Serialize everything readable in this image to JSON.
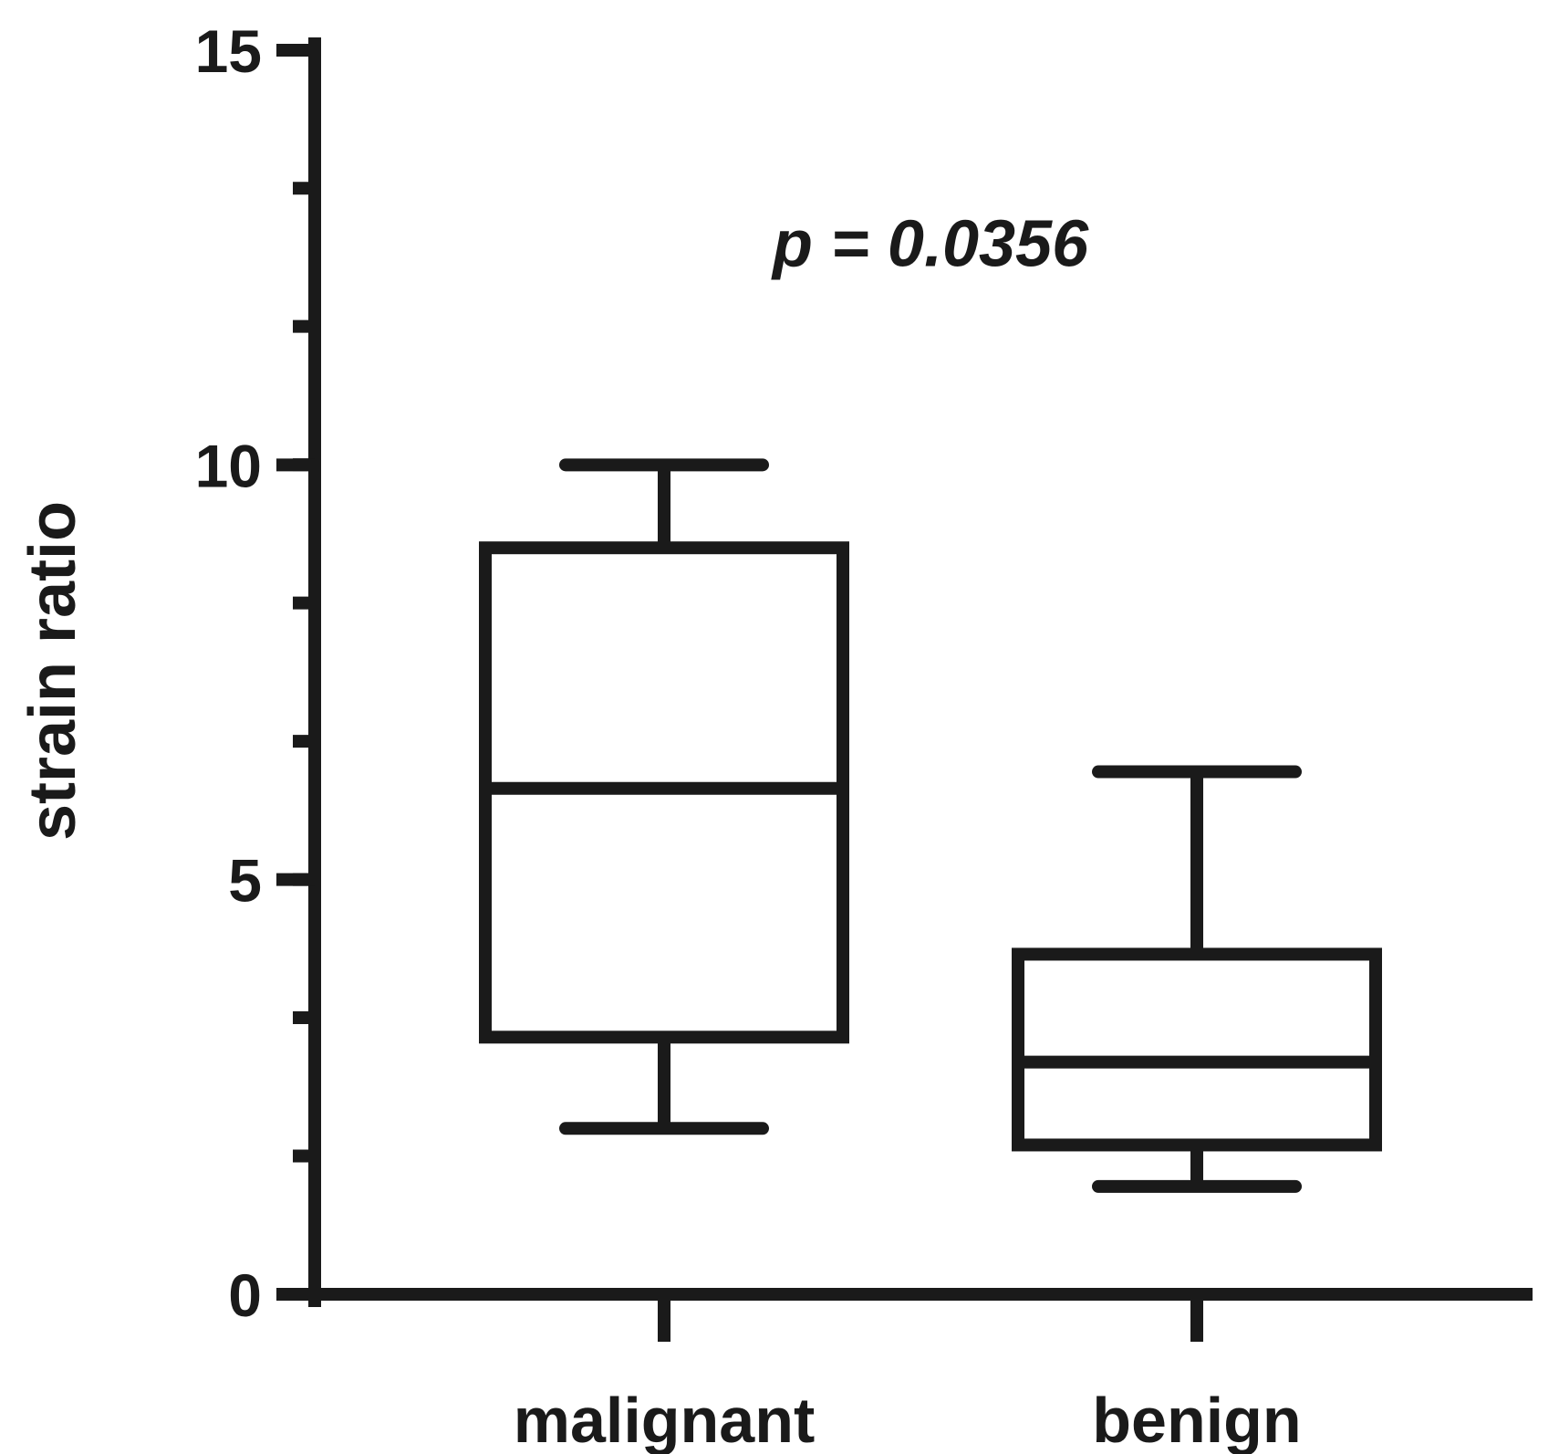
{
  "chart_data": {
    "type": "box",
    "ylabel": "strain ratio",
    "xlabel": "",
    "ylim": [
      0,
      15
    ],
    "yticks_major": [
      0,
      5,
      10,
      15
    ],
    "yticks_minor_step": 1.667,
    "categories": [
      "malignant",
      "benign"
    ],
    "boxes": [
      {
        "name": "malignant",
        "whisker_low": 2.0,
        "q1": 3.1,
        "median": 6.1,
        "q3": 9.0,
        "whisker_high": 10.0
      },
      {
        "name": "benign",
        "whisker_low": 1.3,
        "q1": 1.8,
        "median": 2.8,
        "q3": 4.1,
        "whisker_high": 6.3
      }
    ],
    "annotations": [
      {
        "text": "p = 0.0356",
        "x_between": [
          0,
          1
        ],
        "y": 12.4
      }
    ],
    "grid": false,
    "colors": {
      "ink": "#1a1a1a",
      "background": "#ffffff"
    }
  }
}
